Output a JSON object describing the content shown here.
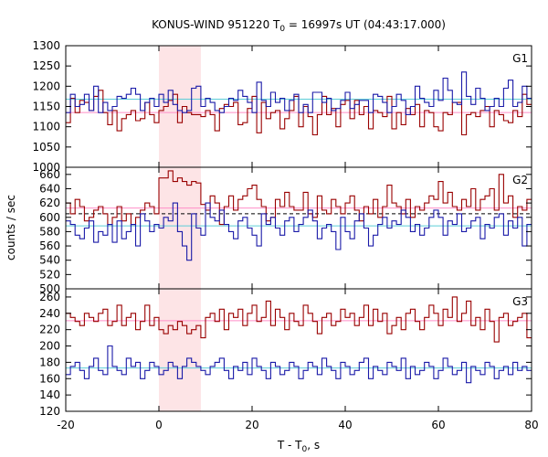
{
  "chart_data": {
    "type": "line",
    "title_main": "KONUS-WIND 951220 T",
    "title_sub": "0",
    "title_rest": " = 16997s UT (04:43:17.000)",
    "xlabel_main": "T - T",
    "xlabel_sub": "0",
    "xlabel_rest": ", s",
    "ylabel": "counts / sec",
    "xlim": [
      -20,
      80
    ],
    "xticks": [
      -20,
      0,
      20,
      40,
      60,
      80
    ],
    "shade": [
      0,
      9
    ],
    "bin_width": 1,
    "colors": {
      "red": "#990000",
      "blue": "#1a1aa8",
      "pink": "#ff8ec8",
      "cyan": "#5ccdd8",
      "shade": "#fde4e6"
    },
    "panels": [
      {
        "label": "G1",
        "ylim": [
          1000,
          1300
        ],
        "yticks": [
          1000,
          1050,
          1100,
          1150,
          1200,
          1250,
          1300
        ],
        "bg_levels": {
          "red": 1135,
          "blue": 1168
        },
        "series": [
          {
            "name": "",
            "color": "red",
            "x_start": -20,
            "values": [
              1110,
              1170,
              1135,
              1165,
              1160,
              1140,
              1175,
              1190,
              1135,
              1105,
              1140,
              1090,
              1120,
              1130,
              1140,
              1115,
              1120,
              1160,
              1130,
              1110,
              1140,
              1150,
              1165,
              1180,
              1110,
              1150,
              1135,
              1130,
              1130,
              1125,
              1140,
              1130,
              1090,
              1145,
              1155,
              1150,
              1160,
              1105,
              1110,
              1145,
              1175,
              1085,
              1160,
              1120,
              1135,
              1140,
              1095,
              1120,
              1140,
              1175,
              1100,
              1150,
              1125,
              1080,
              1130,
              1175,
              1130,
              1145,
              1100,
              1155,
              1165,
              1120,
              1165,
              1130,
              1150,
              1095,
              1140,
              1135,
              1125,
              1175,
              1095,
              1135,
              1105,
              1145,
              1130,
              1155,
              1100,
              1140,
              1135,
              1100,
              1090,
              1135,
              1130,
              1160,
              1160,
              1080,
              1130,
              1135,
              1125,
              1140,
              1150,
              1100,
              1140,
              1130,
              1115,
              1110,
              1140,
              1125,
              1180,
              1155
            ]
          },
          {
            "name": "",
            "color": "blue",
            "x_start": -20,
            "values": [
              1135,
              1180,
              1150,
              1155,
              1180,
              1140,
              1200,
              1135,
              1160,
              1140,
              1150,
              1175,
              1170,
              1180,
              1195,
              1180,
              1140,
              1160,
              1170,
              1150,
              1180,
              1160,
              1190,
              1155,
              1140,
              1135,
              1140,
              1195,
              1200,
              1150,
              1170,
              1160,
              1140,
              1135,
              1150,
              1170,
              1165,
              1190,
              1175,
              1160,
              1135,
              1210,
              1165,
              1150,
              1185,
              1160,
              1170,
              1140,
              1165,
              1180,
              1135,
              1155,
              1135,
              1185,
              1185,
              1160,
              1170,
              1140,
              1145,
              1165,
              1185,
              1145,
              1155,
              1165,
              1165,
              1135,
              1180,
              1175,
              1160,
              1135,
              1150,
              1180,
              1165,
              1130,
              1150,
              1200,
              1170,
              1160,
              1150,
              1190,
              1165,
              1220,
              1190,
              1160,
              1155,
              1235,
              1175,
              1155,
              1195,
              1170,
              1140,
              1150,
              1170,
              1150,
              1195,
              1215,
              1150,
              1160,
              1200,
              1170
            ]
          }
        ]
      },
      {
        "label": "G2",
        "ylim": [
          500,
          670
        ],
        "yticks": [
          500,
          520,
          540,
          560,
          580,
          600,
          620,
          640,
          660
        ],
        "bg_levels": {
          "red": 605,
          "blue": 588,
          "pink": 613
        },
        "series": [
          {
            "name": "",
            "color": "red",
            "x_start": -20,
            "values": [
              620,
              605,
              625,
              615,
              595,
              600,
              610,
              615,
              605,
              590,
              600,
              615,
              595,
              605,
              590,
              600,
              610,
              620,
              615,
              605,
              655,
              655,
              665,
              650,
              655,
              650,
              645,
              650,
              648,
              618,
              610,
              630,
              620,
              590,
              615,
              630,
              610,
              625,
              630,
              640,
              645,
              625,
              615,
              595,
              600,
              625,
              615,
              635,
              615,
              610,
              610,
              635,
              605,
              600,
              630,
              610,
              605,
              625,
              615,
              605,
              620,
              630,
              610,
              595,
              615,
              605,
              625,
              600,
              615,
              645,
              620,
              615,
              605,
              625,
              600,
              615,
              610,
              620,
              630,
              625,
              650,
              620,
              635,
              615,
              610,
              625,
              615,
              640,
              610,
              625,
              630,
              640,
              610,
              660,
              620,
              630,
              600,
              615,
              610,
              625
            ]
          },
          {
            "name": "",
            "color": "blue",
            "x_start": -20,
            "values": [
              595,
              590,
              575,
              570,
              585,
              595,
              565,
              580,
              575,
              590,
              565,
              595,
              570,
              580,
              590,
              560,
              605,
              595,
              580,
              590,
              585,
              600,
              595,
              620,
              580,
              560,
              540,
              605,
              585,
              575,
              620,
              600,
              595,
              610,
              590,
              580,
              570,
              595,
              600,
              585,
              575,
              560,
              605,
              590,
              600,
              585,
              575,
              595,
              600,
              580,
              590,
              600,
              610,
              595,
              570,
              585,
              590,
              580,
              555,
              600,
              580,
              570,
              595,
              605,
              585,
              560,
              575,
              590,
              600,
              585,
              595,
              590,
              610,
              600,
              580,
              590,
              575,
              585,
              600,
              610,
              600,
              575,
              595,
              590,
              605,
              580,
              585,
              595,
              600,
              570,
              590,
              585,
              600,
              605,
              575,
              595,
              585,
              600,
              560,
              590
            ]
          }
        ]
      },
      {
        "label": "G3",
        "ylim": [
          120,
          270
        ],
        "yticks": [
          120,
          140,
          160,
          180,
          200,
          220,
          240,
          260
        ],
        "bg_levels": {
          "red": 231,
          "blue": 173
        },
        "series": [
          {
            "name": "",
            "color": "red",
            "x_start": -20,
            "values": [
              240,
              235,
              230,
              225,
              240,
              235,
              230,
              240,
              245,
              225,
              230,
              250,
              225,
              235,
              240,
              220,
              230,
              250,
              225,
              235,
              220,
              215,
              225,
              220,
              230,
              225,
              215,
              220,
              225,
              210,
              235,
              240,
              230,
              245,
              220,
              240,
              235,
              245,
              225,
              240,
              250,
              230,
              235,
              255,
              225,
              245,
              235,
              220,
              240,
              230,
              225,
              250,
              240,
              230,
              215,
              235,
              240,
              225,
              230,
              245,
              235,
              240,
              225,
              235,
              250,
              225,
              245,
              230,
              240,
              215,
              225,
              235,
              220,
              240,
              245,
              230,
              220,
              235,
              250,
              240,
              225,
              245,
              235,
              260,
              230,
              240,
              255,
              225,
              235,
              220,
              245,
              230,
              205,
              235,
              240,
              225,
              230,
              235,
              240,
              210
            ]
          },
          {
            "name": "",
            "color": "blue",
            "x_start": -20,
            "values": [
              165,
              175,
              180,
              170,
              160,
              175,
              185,
              170,
              165,
              200,
              175,
              170,
              165,
              185,
              175,
              180,
              160,
              170,
              180,
              175,
              165,
              170,
              180,
              175,
              160,
              175,
              185,
              180,
              175,
              170,
              165,
              175,
              180,
              185,
              170,
              160,
              175,
              170,
              180,
              165,
              185,
              175,
              170,
              160,
              180,
              175,
              165,
              170,
              180,
              175,
              160,
              170,
              180,
              175,
              165,
              185,
              175,
              170,
              160,
              180,
              175,
              165,
              170,
              180,
              185,
              160,
              175,
              170,
              165,
              180,
              175,
              170,
              185,
              160,
              175,
              165,
              170,
              180,
              175,
              160,
              170,
              185,
              175,
              165,
              170,
              180,
              155,
              175,
              170,
              165,
              180,
              175,
              160,
              170,
              175,
              165,
              180,
              170,
              175,
              170
            ]
          }
        ]
      }
    ]
  }
}
